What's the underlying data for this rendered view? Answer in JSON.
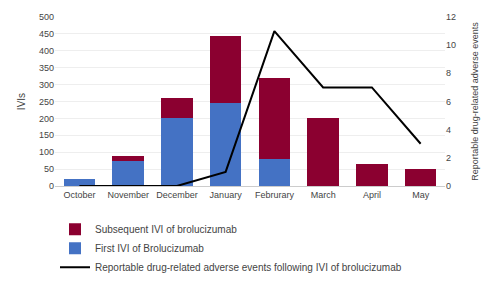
{
  "chart_data": {
    "type": "bar",
    "stacked": true,
    "categories": [
      "October",
      "November",
      "December",
      "January",
      "Februrary",
      "March",
      "April",
      "May"
    ],
    "series": [
      {
        "name": "First IVI of Brolucizumab",
        "type": "bar",
        "color": "#4472C4",
        "values": [
          20,
          75,
          200,
          245,
          80,
          0,
          0,
          0
        ]
      },
      {
        "name": "Subsequent IVI of brolucizumab",
        "type": "bar",
        "color": "#8B0030",
        "values": [
          0,
          15,
          60,
          200,
          240,
          200,
          65,
          50
        ]
      },
      {
        "name": "Reportable drug-related adverse events following IVI of brolucizumab",
        "type": "line",
        "axis": "y2",
        "color": "#000000",
        "values": [
          0,
          0,
          0,
          1,
          11,
          7,
          7,
          3
        ]
      }
    ],
    "ylabel": "IVIs",
    "y2label": "Reportable drug-related adverse events",
    "ylim": [
      0,
      500
    ],
    "yticks": [
      0,
      50,
      100,
      150,
      200,
      250,
      300,
      350,
      400,
      450,
      500
    ],
    "y2lim": [
      0,
      12
    ],
    "y2ticks": [
      0,
      2,
      4,
      6,
      8,
      10,
      12
    ],
    "grid": true,
    "legend": "bottom"
  }
}
